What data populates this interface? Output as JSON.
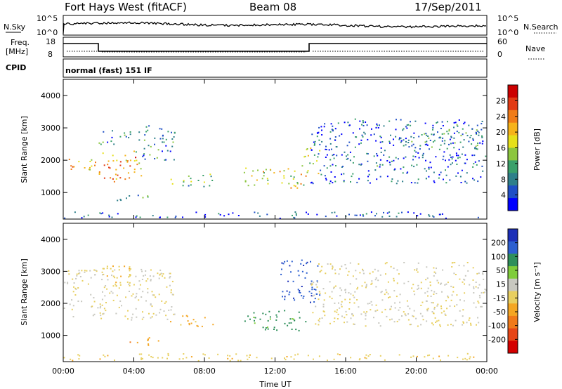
{
  "header": {
    "station": "Fort Hays West (fitACF)",
    "beam": "Beam 08",
    "date": "17/Sep/2011"
  },
  "summary_panels": {
    "nsky_label": "N.Sky",
    "nsky_ticks": [
      "10^5",
      "10^0"
    ],
    "nsearch_label": "N.Search",
    "nsearch_ticks": [
      "10^5",
      "10^0"
    ],
    "freq_label_1": "Freq.",
    "freq_label_2": "[MHz]",
    "freq_ticks": [
      "18",
      "8"
    ],
    "nave_label": "Nave",
    "nave_ticks": [
      "60",
      "0"
    ],
    "cpid_label": "CPID",
    "cpid_text": "normal (fast) 151 IF"
  },
  "chart_data": [
    {
      "type": "heatmap",
      "title": "",
      "xlabel": "Time UT",
      "ylabel": "Slant Range [km]",
      "x_ticks": [
        "00:00",
        "04:00",
        "08:00",
        "12:00",
        "16:00",
        "20:00",
        "00:00"
      ],
      "xlim_hours": [
        0,
        24
      ],
      "y_ticks": [
        1000,
        2000,
        3000,
        4000
      ],
      "ylim": [
        180,
        4500
      ],
      "colorbar": {
        "label": "Power [dB]",
        "ticks": [
          4,
          8,
          12,
          16,
          20,
          24,
          28
        ],
        "range": [
          0,
          32
        ],
        "colors": [
          "#0000ff",
          "#1f4fc6",
          "#2e7f8a",
          "#3aa06a",
          "#8cc63f",
          "#e6e01a",
          "#f6b31a",
          "#f07b17",
          "#e23a14",
          "#cc0000"
        ]
      },
      "regions": [
        {
          "t": [
            0.0,
            1.8
          ],
          "r": [
            1650,
            2100
          ],
          "v": 20
        },
        {
          "t": [
            2.0,
            4.5
          ],
          "r": [
            1350,
            2300
          ],
          "v": 22
        },
        {
          "t": [
            4.0,
            6.3
          ],
          "r": [
            2000,
            3100
          ],
          "v": 8
        },
        {
          "t": [
            2.0,
            3.8
          ],
          "r": [
            2500,
            3000
          ],
          "v": 7
        },
        {
          "t": [
            3.0,
            5.5
          ],
          "r": [
            750,
            950
          ],
          "v": 12
        },
        {
          "t": [
            6.0,
            8.5
          ],
          "r": [
            1200,
            1600
          ],
          "v": 12
        },
        {
          "t": [
            10.2,
            13.8
          ],
          "r": [
            1150,
            1800
          ],
          "v": 18
        },
        {
          "t": [
            13.5,
            14.5
          ],
          "r": [
            1600,
            2400
          ],
          "v": 14
        },
        {
          "t": [
            14.0,
            24.0
          ],
          "r": [
            1300,
            3300
          ],
          "v": 6
        },
        {
          "t": [
            19.0,
            24.0
          ],
          "r": [
            2400,
            3000
          ],
          "v": 9
        },
        {
          "t": [
            0.0,
            24.0
          ],
          "r": [
            200,
            420
          ],
          "v": 5
        }
      ]
    },
    {
      "type": "heatmap",
      "title": "",
      "xlabel": "Time UT",
      "ylabel": "Slant Range [km]",
      "x_ticks": [
        "00:00",
        "04:00",
        "08:00",
        "12:00",
        "16:00",
        "20:00",
        "00:00"
      ],
      "xlim_hours": [
        0,
        24
      ],
      "y_ticks": [
        1000,
        2000,
        3000,
        4000
      ],
      "ylim": [
        180,
        4500
      ],
      "colorbar": {
        "label": "Velocity [m s⁻¹]",
        "ticks": [
          200,
          100,
          50,
          15,
          -15,
          -50,
          -100,
          -200
        ],
        "colors": [
          "#1c2fb8",
          "#2c5fd0",
          "#2e8f5a",
          "#7fcc3a",
          "#c8c8c0",
          "#e8cf60",
          "#f4a623",
          "#f07a1a",
          "#e64517",
          "#d40000"
        ]
      },
      "regions": [
        {
          "t": [
            0.0,
            6.3
          ],
          "r": [
            1500,
            3100
          ],
          "v": 0
        },
        {
          "t": [
            2.0,
            3.8
          ],
          "r": [
            2500,
            3200
          ],
          "v": -30
        },
        {
          "t": [
            3.5,
            5.5
          ],
          "r": [
            700,
            950
          ],
          "v": -80
        },
        {
          "t": [
            6.0,
            8.5
          ],
          "r": [
            1300,
            1650
          ],
          "v": -60
        },
        {
          "t": [
            10.2,
            13.8
          ],
          "r": [
            1150,
            1800
          ],
          "v": 120
        },
        {
          "t": [
            12.3,
            14.5
          ],
          "r": [
            2000,
            3400
          ],
          "v": 180
        },
        {
          "t": [
            14.0,
            24.0
          ],
          "r": [
            1300,
            3300
          ],
          "v": 0
        },
        {
          "t": [
            0.0,
            24.0
          ],
          "r": [
            200,
            450
          ],
          "v": -30
        }
      ]
    }
  ]
}
